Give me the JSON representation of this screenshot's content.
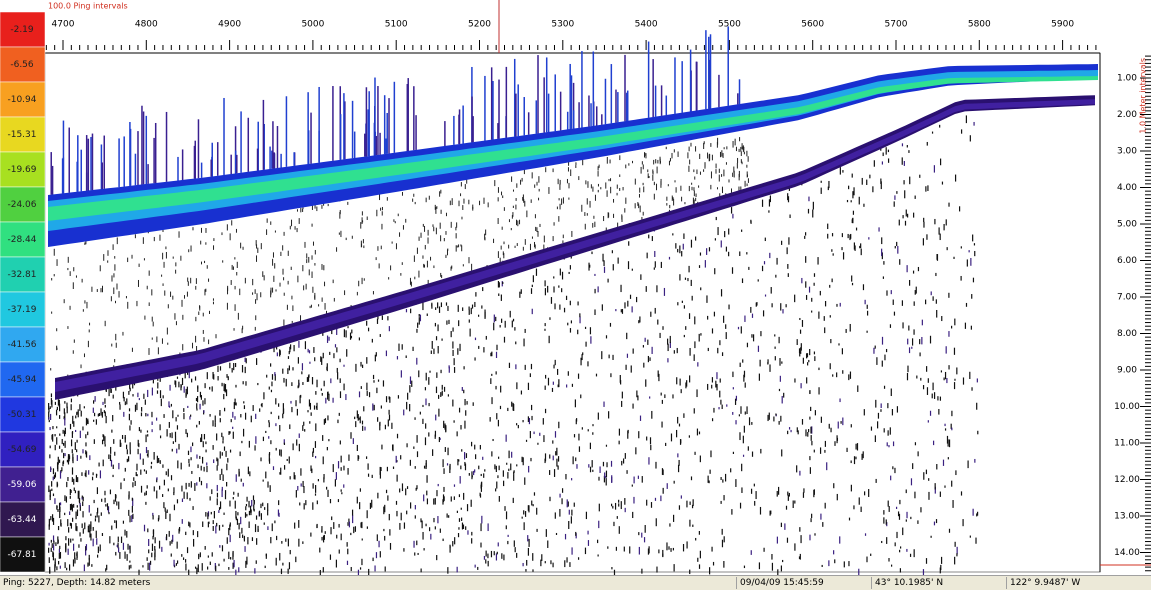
{
  "color_scale": {
    "labels": [
      "-2.19",
      "-6.56",
      "-10.94",
      "-15.31",
      "-19.69",
      "-24.06",
      "-28.44",
      "-32.81",
      "-37.19",
      "-41.56",
      "-45.94",
      "-50.31",
      "-54.69",
      "-59.06",
      "-63.44",
      "-67.81"
    ],
    "colors": [
      "#e8201c",
      "#f06020",
      "#f8a020",
      "#e8d820",
      "#a8e020",
      "#50d040",
      "#30e080",
      "#20d0b0",
      "#20c8e0",
      "#30a8f0",
      "#2068f0",
      "#2038e0",
      "#3020c0",
      "#402090",
      "#301850",
      "#101010"
    ]
  },
  "ping_axis": {
    "title": "100.0 Ping intervals",
    "labels": [
      "4700",
      "4800",
      "4900",
      "5000",
      "5100",
      "5200",
      "5300",
      "5400",
      "5500",
      "5600",
      "5700",
      "5800",
      "5900"
    ]
  },
  "depth_axis": {
    "title": "1.0 Meter intervals",
    "labels": [
      "1.00",
      "2.00",
      "3.00",
      "4.00",
      "5.00",
      "6.00",
      "7.00",
      "8.00",
      "9.00",
      "10.00",
      "11.00",
      "12.00",
      "13.00",
      "14.00"
    ]
  },
  "status_bar": {
    "ping_depth": "Ping: 5227, Depth: 14.82 meters",
    "datetime": "09/04/09 15:45:59",
    "latitude": "43° 10.1985' N",
    "longitude": "122° 9.9487' W"
  }
}
